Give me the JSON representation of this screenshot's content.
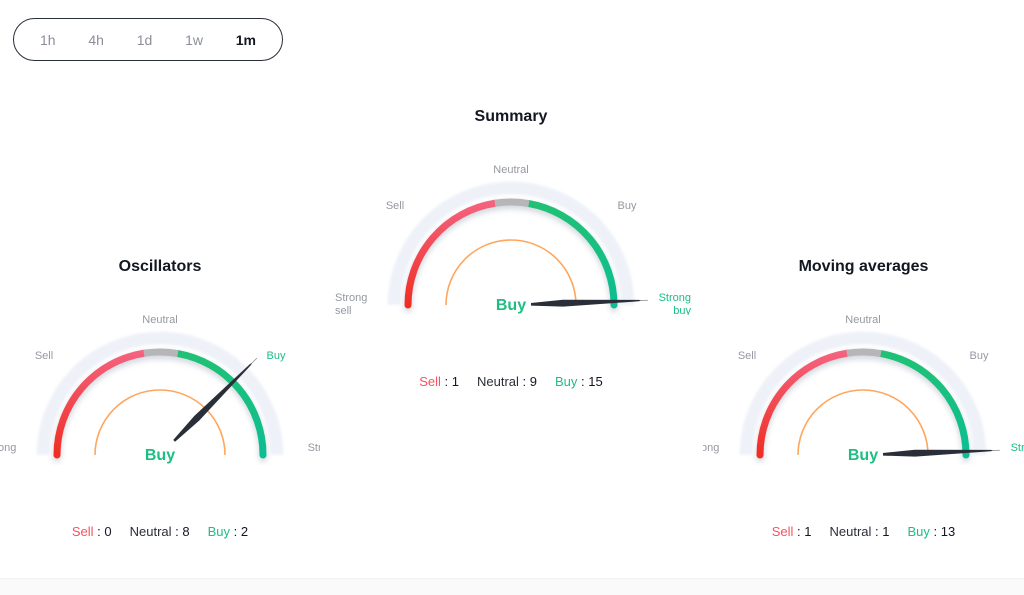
{
  "intervals": {
    "options": [
      {
        "label": "1h",
        "active": false
      },
      {
        "label": "4h",
        "active": false
      },
      {
        "label": "1d",
        "active": false
      },
      {
        "label": "1w",
        "active": false
      },
      {
        "label": "1m",
        "active": true
      }
    ]
  },
  "colors": {
    "title": "#131722",
    "gray_label": "#9598A1",
    "red_text": "#F7525F",
    "green_text": "#1DBE84",
    "neutral_text": "#2A2E39",
    "arc_red_top": "#F4627D",
    "arc_red_bottom": "#F02E24",
    "arc_gray": "#B6B6B8",
    "arc_green_top": "#20C175",
    "arc_green_bottom": "#0CBE92",
    "arc_outer": "#EDF1F8",
    "arc_inner_orange": "#FFA65C",
    "needle": "#2A2E39"
  },
  "chart_data": [
    {
      "type": "gauge",
      "title": "Oscillators",
      "axis_labels": {
        "strong_sell": "Strong sell",
        "sell": "Sell",
        "neutral": "Neutral",
        "buy": "Buy",
        "strong_buy": "Strong buy"
      },
      "highlight": "buy",
      "rating": "Buy",
      "needle_angle_deg": 45,
      "arc_segments_deg": {
        "red": [
          99,
          180
        ],
        "gray": [
          80,
          99
        ],
        "green": [
          0,
          80
        ]
      },
      "counts": {
        "sell_label": "Sell",
        "sell": 0,
        "neutral_label": "Neutral",
        "neutral": 8,
        "buy_label": "Buy",
        "buy": 2
      }
    },
    {
      "type": "gauge",
      "title": "Summary",
      "axis_labels": {
        "strong_sell": "Strong sell",
        "sell": "Sell",
        "neutral": "Neutral",
        "buy": "Buy",
        "strong_buy": "Strong buy"
      },
      "highlight": "strong_buy",
      "rating": "Buy",
      "needle_angle_deg": 2,
      "arc_segments_deg": {
        "red": [
          99,
          180
        ],
        "gray": [
          80,
          99
        ],
        "green": [
          0,
          80
        ]
      },
      "counts": {
        "sell_label": "Sell",
        "sell": 1,
        "neutral_label": "Neutral",
        "neutral": 9,
        "buy_label": "Buy",
        "buy": 15
      }
    },
    {
      "type": "gauge",
      "title": "Moving averages",
      "axis_labels": {
        "strong_sell": "Strong sell",
        "sell": "Sell",
        "neutral": "Neutral",
        "buy": "Buy",
        "strong_buy": "Strong buy"
      },
      "highlight": "strong_buy",
      "rating": "Buy",
      "needle_angle_deg": 2,
      "arc_segments_deg": {
        "red": [
          99,
          180
        ],
        "gray": [
          80,
          99
        ],
        "green": [
          0,
          80
        ]
      },
      "counts": {
        "sell_label": "Sell",
        "sell": 1,
        "neutral_label": "Neutral",
        "neutral": 1,
        "buy_label": "Buy",
        "buy": 13
      }
    }
  ]
}
